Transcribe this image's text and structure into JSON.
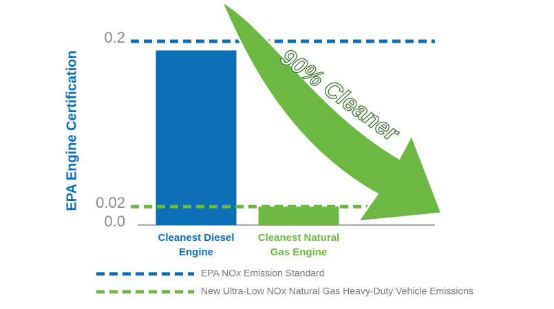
{
  "chart_data": {
    "type": "bar",
    "y_label": "EPA Engine Certification",
    "categories": [
      "Cleanest Diesel Engine",
      "Cleanest Natural Gas Engine"
    ],
    "values": [
      0.19,
      0.02
    ],
    "colors": [
      "#0a6fb4",
      "#6cb843"
    ],
    "ylim": [
      0,
      0.2
    ],
    "yticks": [
      {
        "value": 0,
        "label": "0.0"
      },
      0.02,
      0.2
    ],
    "reference_lines": [
      {
        "name": "EPA NOx Emission Standard",
        "value": 0.2,
        "color": "#0a6fb4"
      },
      {
        "name": "New Ultra-Low NOx Natural Gas Heavy-Duty Vehicle Emissions",
        "value": 0.02,
        "color": "#6cb843"
      }
    ],
    "annotation": "90% Cleaner"
  }
}
